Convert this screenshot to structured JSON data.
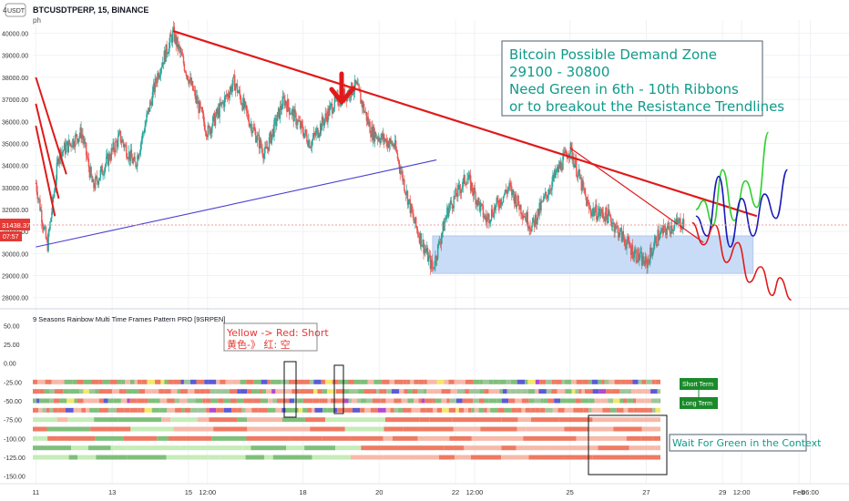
{
  "header": {
    "symbol_line": "BTCUSDTPERP, 15, BINANCE",
    "sub_label": "ph",
    "quote_unit": "USDT",
    "corner_digit": "4"
  },
  "price_badge": {
    "value": "31438.37",
    "timer": "07:57"
  },
  "indicator": {
    "title": "9 Seasons Rainbow Multi Time Frames Pattern PRO [9SRPEN]",
    "y_ticks": [
      "50.00",
      "25.00",
      "0.00",
      "-25.00",
      "-50.00",
      "-75.00",
      "-100.00",
      "-125.00",
      "-150.00"
    ],
    "y_values": [
      50,
      25,
      0,
      -25,
      -50,
      -75,
      -100,
      -125,
      -150
    ],
    "rows": 9
  },
  "annotations": {
    "demand_zone": [
      "Bitcoin Possible Demand Zone",
      "29100 - 30800",
      "Need Green in 6th - 10th Ribbons",
      "or to breakout the Resistance Trendlines"
    ],
    "yellow_red_en": "Yellow -> Red: Short",
    "yellow_red_cn": "黄色-》 红:  空",
    "short_term": "Short Term",
    "long_term": "Long Term",
    "wait_green": "Wait For Green in the Context"
  },
  "colors": {
    "resistance": "#e01a1a",
    "support": "#4a3fd1",
    "zone_fill": "#c9dcf7",
    "teal_text": "#109a8a",
    "up_candle": "#26a69a",
    "down_candle": "#ef5350",
    "ribbon_red": "#ef7a63",
    "ribbon_pink": "#f7b9a9",
    "ribbon_green": "#7fbf7b",
    "ribbon_lightgreen": "#c6ecb8"
  },
  "chart_data": {
    "type": "candlestick",
    "title": "BTCUSDTPERP, 15, BINANCE",
    "ylim": [
      27700,
      40600
    ],
    "y_ticks": [
      28000,
      29000,
      30000,
      31000,
      32000,
      33000,
      34000,
      35000,
      36000,
      37000,
      38000,
      39000,
      40000
    ],
    "y_tick_labels": [
      "28000.00",
      "29000.00",
      "30000.00",
      "31000.00",
      "32000.00",
      "33000.00",
      "34000.00",
      "35000.00",
      "36000.00",
      "37000.00",
      "38000.00",
      "39000.00",
      "40000.00"
    ],
    "x_labels": [
      "11",
      "13",
      "15",
      "12:00",
      "18",
      "20",
      "22",
      "12:00",
      "25",
      "27",
      "29",
      "12:00",
      "Feb",
      "06:00"
    ],
    "price_path": [
      {
        "x": 11.0,
        "y": 33200
      },
      {
        "x": 11.3,
        "y": 30300
      },
      {
        "x": 11.6,
        "y": 34500
      },
      {
        "x": 12.2,
        "y": 35500
      },
      {
        "x": 12.5,
        "y": 33000
      },
      {
        "x": 13.2,
        "y": 35300
      },
      {
        "x": 13.6,
        "y": 34000
      },
      {
        "x": 14.2,
        "y": 38200
      },
      {
        "x": 14.6,
        "y": 40000
      },
      {
        "x": 15.0,
        "y": 38000
      },
      {
        "x": 15.5,
        "y": 35500
      },
      {
        "x": 16.2,
        "y": 37800
      },
      {
        "x": 16.6,
        "y": 36000
      },
      {
        "x": 17.0,
        "y": 34500
      },
      {
        "x": 17.5,
        "y": 37000
      },
      {
        "x": 18.2,
        "y": 35000
      },
      {
        "x": 18.8,
        "y": 36800
      },
      {
        "x": 19.4,
        "y": 37600
      },
      {
        "x": 19.8,
        "y": 35500
      },
      {
        "x": 20.4,
        "y": 34900
      },
      {
        "x": 20.9,
        "y": 31500
      },
      {
        "x": 21.4,
        "y": 29300
      },
      {
        "x": 21.8,
        "y": 32000
      },
      {
        "x": 22.3,
        "y": 33500
      },
      {
        "x": 22.8,
        "y": 31500
      },
      {
        "x": 23.4,
        "y": 33000
      },
      {
        "x": 24.0,
        "y": 31200
      },
      {
        "x": 24.6,
        "y": 33500
      },
      {
        "x": 25.0,
        "y": 34800
      },
      {
        "x": 25.5,
        "y": 32000
      },
      {
        "x": 26.0,
        "y": 31700
      },
      {
        "x": 26.6,
        "y": 30200
      },
      {
        "x": 27.0,
        "y": 29500
      },
      {
        "x": 27.3,
        "y": 30800
      },
      {
        "x": 27.7,
        "y": 31300
      },
      {
        "x": 28.0,
        "y": 31438
      }
    ],
    "zone": {
      "y_low": 29100,
      "y_high": 30800,
      "x_start": 21.4,
      "x_end": 29.8
    },
    "trendlines": [
      {
        "name": "resistance",
        "x0": 14.6,
        "y0": 40100,
        "x1": 29.9,
        "y1": 31700
      },
      {
        "name": "support",
        "x0": 11.0,
        "y0": 30300,
        "x1": 21.5,
        "y1": 34250
      },
      {
        "name": "short resistance",
        "x0": 25.0,
        "y0": 34800,
        "x1": 28.5,
        "y1": 30500
      }
    ],
    "projections": [
      {
        "color": "green",
        "points": [
          [
            28.3,
            32000
          ],
          [
            28.5,
            32400
          ],
          [
            28.75,
            31300
          ],
          [
            29.0,
            33800
          ],
          [
            29.3,
            31500
          ],
          [
            29.6,
            33300
          ],
          [
            29.9,
            32100
          ],
          [
            30.2,
            35500
          ]
        ]
      },
      {
        "color": "blue",
        "points": [
          [
            28.3,
            31700
          ],
          [
            28.6,
            30800
          ],
          [
            28.9,
            33500
          ],
          [
            29.2,
            30300
          ],
          [
            29.5,
            32500
          ],
          [
            29.8,
            30800
          ],
          [
            30.1,
            32700
          ],
          [
            30.4,
            31600
          ],
          [
            30.7,
            33800
          ]
        ]
      },
      {
        "color": "red",
        "points": [
          [
            28.2,
            31400
          ],
          [
            28.5,
            30400
          ],
          [
            28.8,
            31300
          ],
          [
            29.1,
            29600
          ],
          [
            29.4,
            30500
          ],
          [
            29.7,
            28700
          ],
          [
            30.0,
            29400
          ],
          [
            30.3,
            28100
          ],
          [
            30.5,
            28900
          ],
          [
            30.8,
            27900
          ]
        ]
      }
    ]
  }
}
